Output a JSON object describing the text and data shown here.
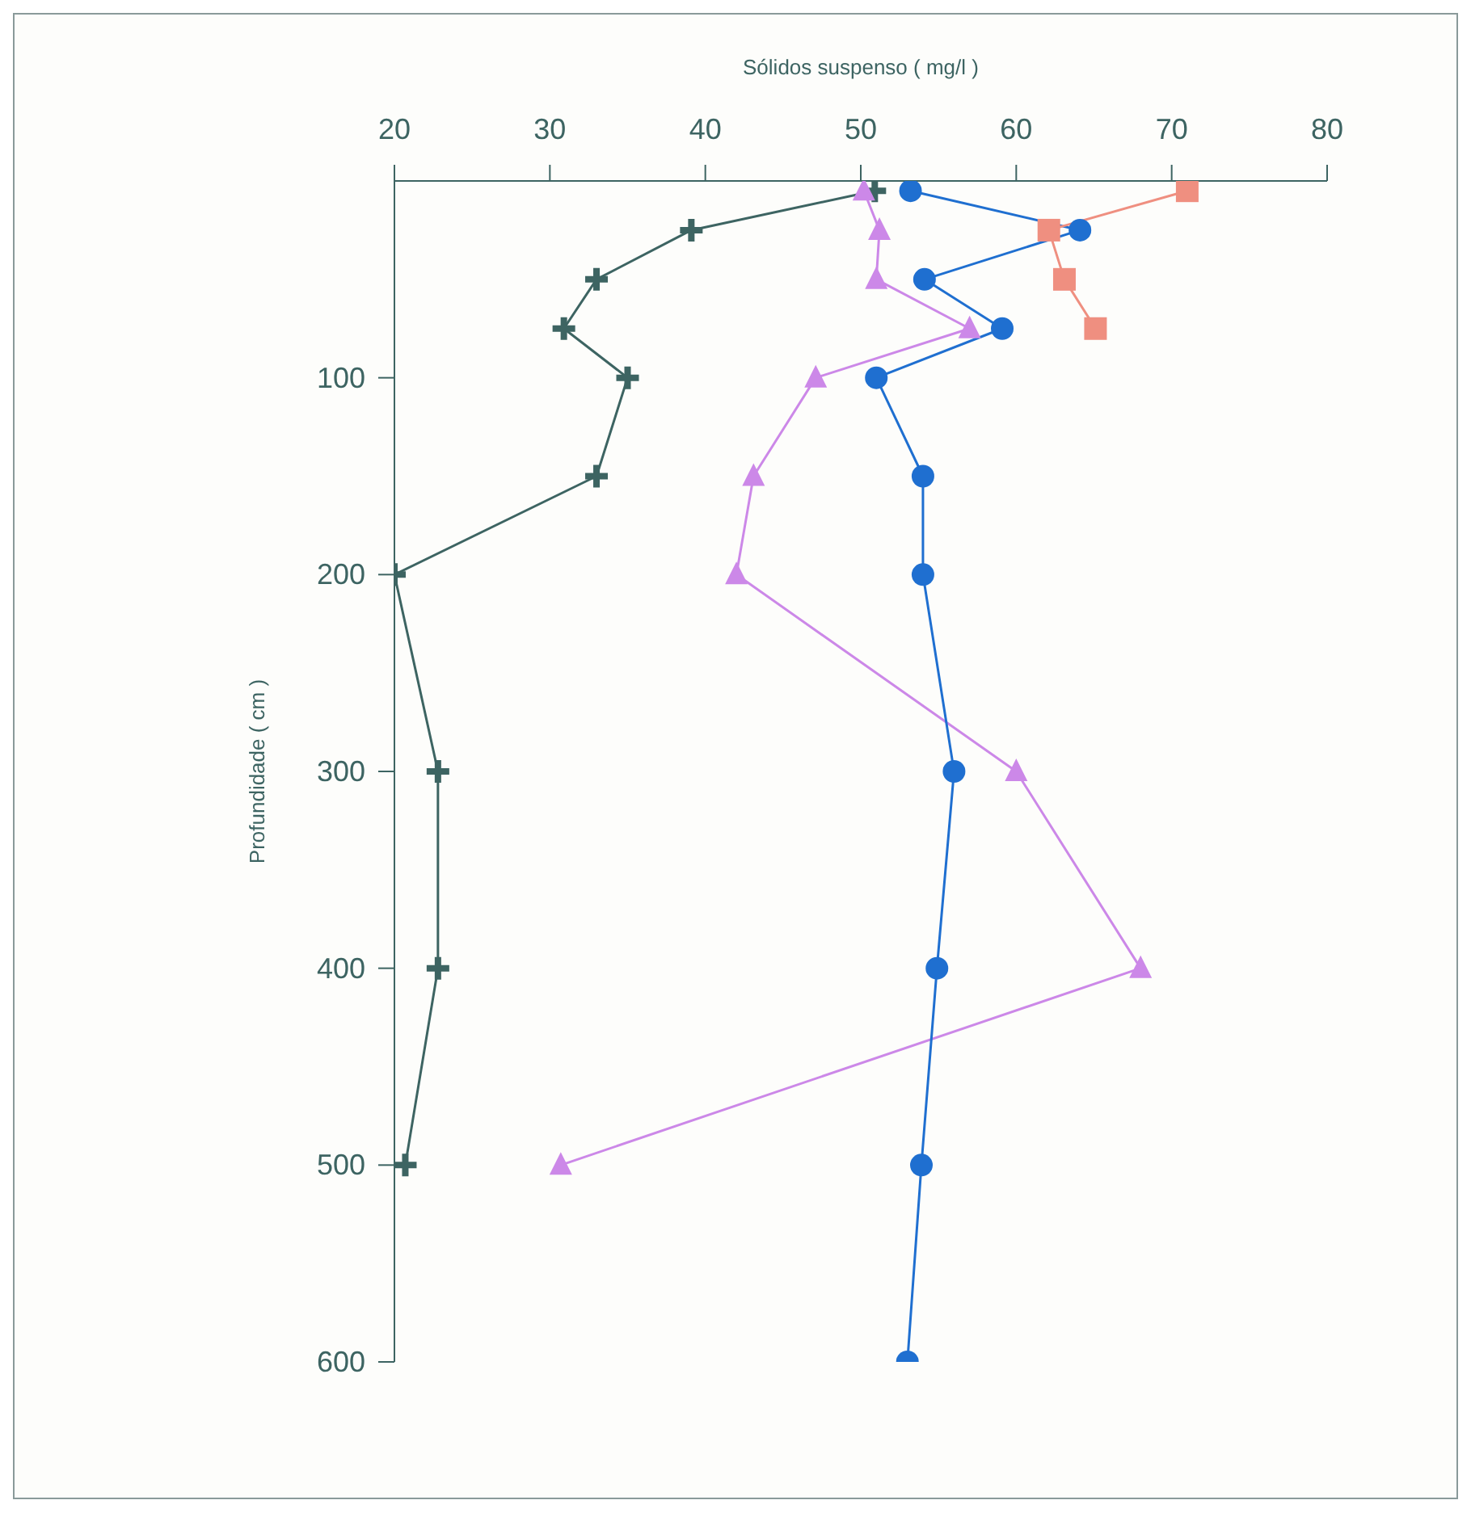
{
  "chart_data": {
    "type": "line",
    "xlabel": "Sólidos suspenso ( mg/l )",
    "ylabel": "Profundidade ( cm )",
    "xlim": [
      20,
      80
    ],
    "xticks": [
      20,
      30,
      40,
      50,
      60,
      70,
      80
    ],
    "ylim": [
      600,
      0
    ],
    "yticks": [
      100,
      200,
      300,
      400,
      500,
      600
    ],
    "series": [
      {
        "color": "#3d6462",
        "marker": "cross",
        "x": [
          50.9,
          39.1,
          33,
          30.9,
          35,
          33,
          20,
          22.8,
          22.8,
          20.7
        ],
        "values": [
          5,
          25,
          50,
          75,
          100,
          150,
          200,
          300,
          400,
          500
        ]
      },
      {
        "color": "#cc88e8",
        "marker": "triangle",
        "x": [
          50.2,
          51.2,
          51,
          57,
          47.1,
          43.1,
          42,
          60,
          68,
          30.7
        ],
        "values": [
          5,
          25,
          50,
          75,
          100,
          150,
          200,
          300,
          400,
          500
        ]
      },
      {
        "color": "#1f6fd0",
        "marker": "circle",
        "x": [
          53.2,
          64.1,
          54.1,
          59.1,
          51,
          54,
          54,
          56,
          54.9,
          53.9,
          53
        ],
        "values": [
          5,
          25,
          50,
          75,
          100,
          150,
          200,
          300,
          400,
          500,
          600
        ]
      },
      {
        "color": "#ef8f80",
        "marker": "square",
        "x": [
          71,
          62.1,
          63.1,
          65.1
        ],
        "values": [
          5,
          25,
          50,
          75
        ]
      }
    ]
  }
}
